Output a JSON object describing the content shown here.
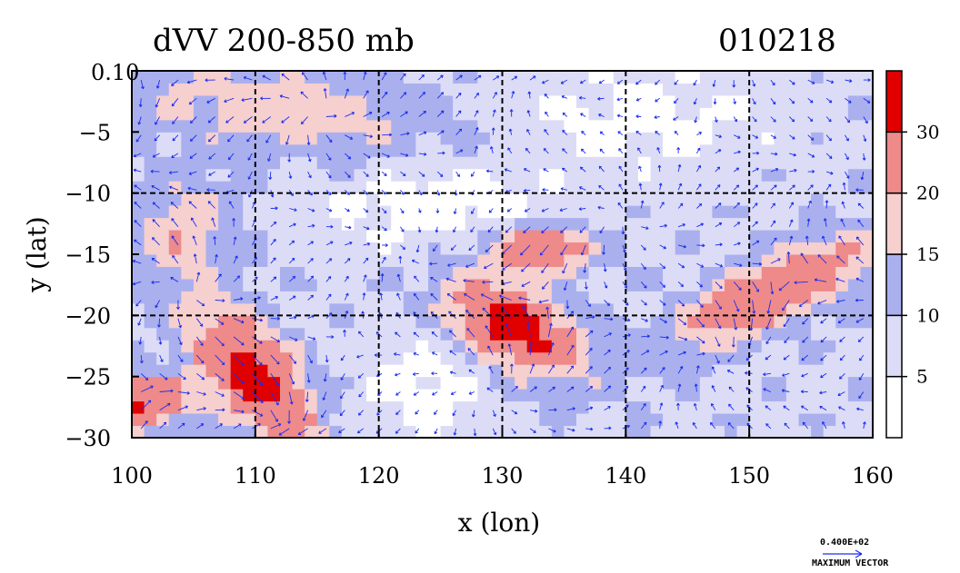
{
  "title_left": "dVV 200-850 mb",
  "title_right": "010218",
  "colors": {
    "c0": "#ffffff",
    "c1": "#dcdcf7",
    "c2": "#aab0ee",
    "c3": "#f6cfcf",
    "c4": "#ee8a8a",
    "c5": "#e10000",
    "vector": "#1a2cf0"
  },
  "chart_data": {
    "type": "map",
    "xlabel": "x (lon)",
    "ylabel": "y (lat)",
    "xlim": [
      100,
      160
    ],
    "ylim": [
      -30,
      0
    ],
    "xticks": [
      "100",
      "110",
      "120",
      "130",
      "140",
      "150",
      "160"
    ],
    "yticks": [
      "−30",
      "−25",
      "−20",
      "−15",
      "−10",
      "−5",
      "0"
    ],
    "y_top_label": "0.10",
    "grid": true,
    "colorbar": {
      "levels": [
        0,
        5,
        10,
        15,
        20,
        30,
        35
      ],
      "labels": [
        "5",
        "10",
        "15",
        "20",
        "30"
      ]
    },
    "vector_legend": {
      "value": "0.400E+02",
      "label": "MAXIMUM VECTOR"
    }
  }
}
